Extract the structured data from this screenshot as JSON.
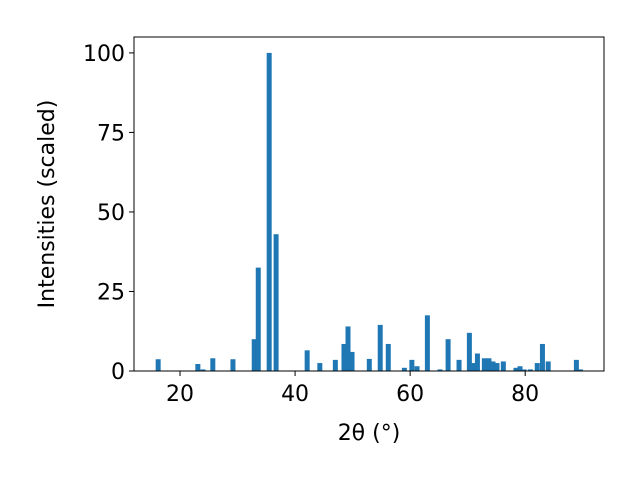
{
  "chart_data": {
    "type": "bar",
    "xlabel": "2θ (°)",
    "ylabel": "Intensities (scaled)",
    "color": "#1f77b4",
    "x": [
      16.2,
      23.1,
      24.0,
      25.7,
      29.2,
      32.9,
      33.6,
      35.5,
      36.7,
      42.1,
      44.3,
      47.0,
      48.5,
      49.2,
      49.9,
      52.9,
      54.8,
      56.2,
      59.0,
      60.3,
      61.2,
      63.0,
      65.2,
      66.6,
      68.5,
      70.3,
      71.0,
      71.7,
      72.9,
      73.7,
      74.4,
      75.1,
      76.2,
      78.4,
      79.1,
      79.8,
      80.9,
      82.1,
      83.0,
      84.0,
      88.9,
      89.6
    ],
    "values": [
      3.7,
      2.2,
      0.5,
      4,
      3.7,
      10,
      32.5,
      100,
      43,
      6.5,
      2.5,
      3.5,
      8.5,
      14,
      6,
      3.8,
      14.5,
      8.5,
      1,
      3.5,
      1.5,
      17.5,
      0.5,
      10,
      3.5,
      12,
      2.5,
      5.5,
      4,
      4,
      3,
      2.5,
      3,
      1,
      1.5,
      0.5,
      0.5,
      2.5,
      8.5,
      3,
      3.5,
      0.5
    ],
    "xlim": [
      12,
      93.7
    ],
    "xticks": [
      20,
      40,
      60,
      80
    ],
    "ylim": [
      0,
      105
    ],
    "yticks": [
      0,
      25,
      50,
      75,
      100
    ]
  }
}
